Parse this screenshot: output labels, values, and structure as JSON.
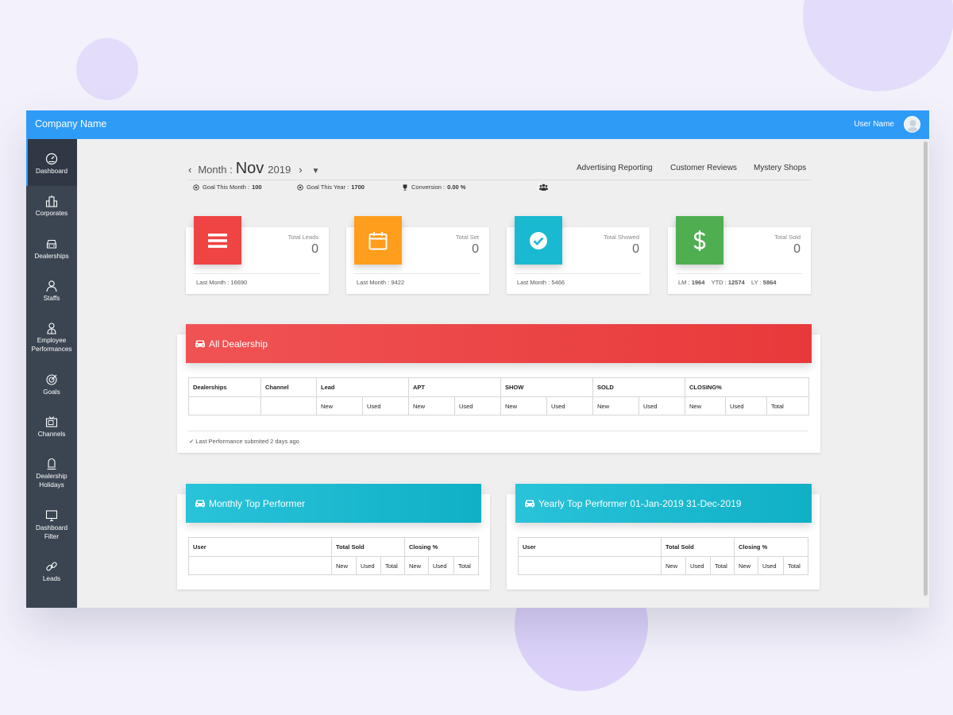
{
  "app": {
    "title": "Company Name",
    "user_name": "User Name"
  },
  "sidebar": {
    "items": [
      {
        "label": "Dashboard",
        "icon": "speedometer-icon",
        "active": true
      },
      {
        "label": "Corporates",
        "icon": "building-icon"
      },
      {
        "label": "Dealerships",
        "icon": "car-front-icon"
      },
      {
        "label": "Staffs",
        "icon": "person-icon"
      },
      {
        "label": "Employee Performances",
        "icon": "employee-icon"
      },
      {
        "label": "Goals",
        "icon": "target-icon"
      },
      {
        "label": "Channels",
        "icon": "tv-icon"
      },
      {
        "label": "Dealership Holidays",
        "icon": "holiday-icon"
      },
      {
        "label": "Dashboard Filter",
        "icon": "monitor-icon"
      },
      {
        "label": "Leads",
        "icon": "link-icon"
      }
    ]
  },
  "period": {
    "prefix": "Month :",
    "month": "Nov",
    "year": "2019"
  },
  "top_links": [
    "Advertising Reporting",
    "Customer Reviews",
    "Mystery Shops"
  ],
  "goals": {
    "month_label": "Goal This Month :",
    "month_value": "100",
    "year_label": "Goal This Year :",
    "year_value": "1700",
    "conversion_label": "Conversion :",
    "conversion_value": "0.00 %"
  },
  "cards": [
    {
      "title": "Total Leads",
      "value": "0",
      "foot": "Last Month : 16690",
      "color": "#ee4443",
      "icon": "list-icon"
    },
    {
      "title": "Total Set",
      "value": "0",
      "foot": "Last Month : 9422",
      "color": "#ff9d1c",
      "icon": "calendar-icon"
    },
    {
      "title": "Total Showed",
      "value": "0",
      "foot": "Last Month : 5466",
      "color": "#1ab9d2",
      "icon": "check-circle-icon"
    },
    {
      "title": "Total Sold",
      "value": "0",
      "color": "#4faf50",
      "icon": "dollar-icon",
      "foot_lm_label": "LM :",
      "foot_lm": "1964",
      "foot_ytd_label": "YTD :",
      "foot_ytd": "12574",
      "foot_ly_label": "LY :",
      "foot_ly": "5864"
    }
  ],
  "all_dealership": {
    "title": "All Dealership",
    "columns": [
      "Dealerships",
      "Channel",
      "Lead",
      "APT",
      "SHOW",
      "SOLD",
      "CLOSING%"
    ],
    "sub_new": "New",
    "sub_used": "Used",
    "sub_total": "Total",
    "footer": "Last Performance submited 2 days ago"
  },
  "monthly": {
    "title": "Monthly Top Performer",
    "columns": [
      "User",
      "Total Sold",
      "Closing %"
    ],
    "sub": [
      "New",
      "Used",
      "Total",
      "New",
      "Used",
      "Total"
    ]
  },
  "yearly": {
    "title": "Yearly Top Performer 01-Jan-2019 31-Dec-2019",
    "columns": [
      "User",
      "Total Sold",
      "Closing %"
    ],
    "sub": [
      "New",
      "Used",
      "Total",
      "New",
      "Used",
      "Total"
    ]
  }
}
